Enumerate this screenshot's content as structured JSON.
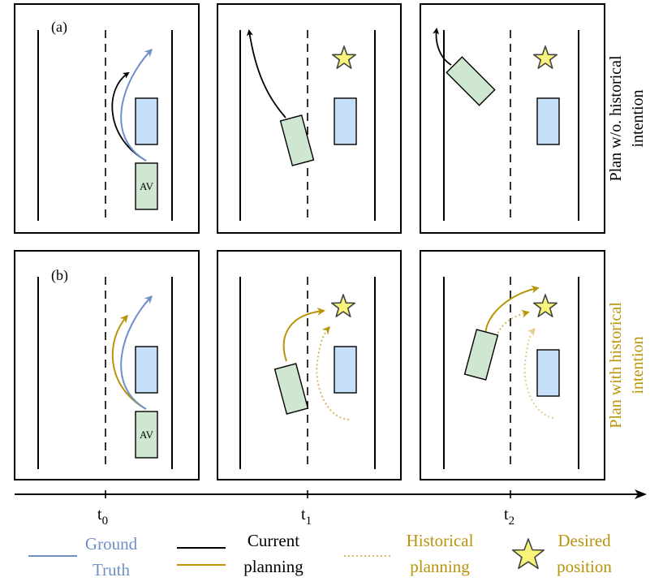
{
  "panel_labels": {
    "a": "(a)",
    "b": "(b)"
  },
  "vehicle_label": "AV",
  "side_labels": {
    "top_line1": "Plan w/o. historical",
    "top_line2": "intention",
    "bottom_line1": "Plan with historical",
    "bottom_line2": "intention"
  },
  "timeline": {
    "ticks": [
      {
        "base": "t",
        "sub": "0"
      },
      {
        "base": "t",
        "sub": "1"
      },
      {
        "base": "t",
        "sub": "2"
      }
    ]
  },
  "legend": {
    "ground_truth": [
      "Ground",
      "Truth"
    ],
    "current_planning": [
      "Current",
      "planning"
    ],
    "historical_planning": [
      "Historical",
      "planning"
    ],
    "desired_position": [
      "Desired",
      "position"
    ]
  },
  "colors": {
    "ground_truth": "#6f8fc8",
    "current_wo": "#000000",
    "current_with": "#b8940a",
    "historical": "#d8b860",
    "star_fill": "#f8f47a",
    "av_fill": "#cfe6d0",
    "obstacle_fill": "#c5dff8",
    "side_label_with": "#b8940a"
  }
}
